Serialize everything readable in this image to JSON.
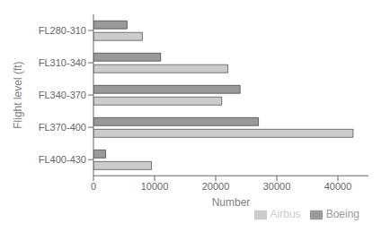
{
  "chart_data": {
    "type": "bar",
    "orientation": "horizontal",
    "categories": [
      "FL280-310",
      "FL310-340",
      "FL340-370",
      "FL370-400",
      "FL400-430"
    ],
    "series": [
      {
        "name": "Boeing",
        "color": "#999999",
        "values": [
          5500,
          11000,
          24000,
          27000,
          2000
        ]
      },
      {
        "name": "Airbus",
        "color": "#cccccc",
        "values": [
          8000,
          22000,
          21000,
          42500,
          9500
        ]
      }
    ],
    "xlabel": "Number",
    "ylabel": "Flight level (ft)",
    "xlim": [
      0,
      45000
    ],
    "xticks": [
      0,
      10000,
      20000,
      30000,
      40000
    ],
    "legend": "lower right"
  }
}
